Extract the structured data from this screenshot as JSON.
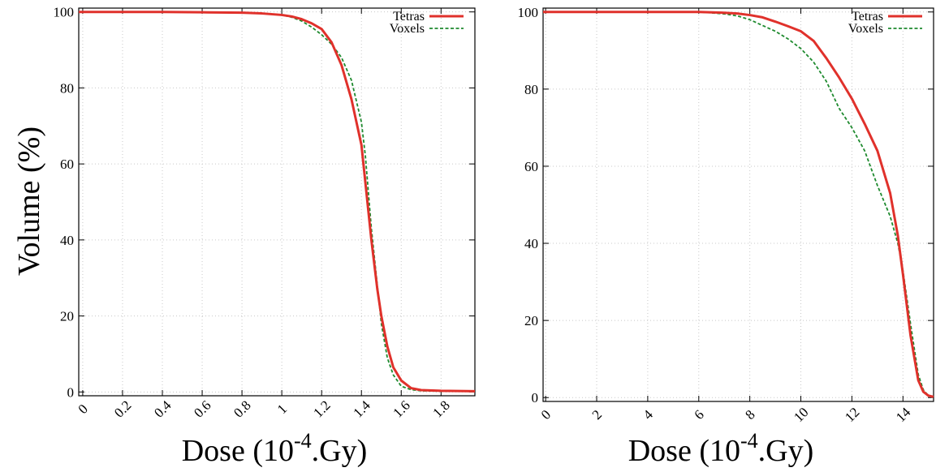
{
  "figure": {
    "ylabel": "Volume (%)",
    "xlabel_parts": [
      "Dose (10",
      "-4",
      ".Gy)"
    ]
  },
  "legend": {
    "tetras": "Tetras",
    "voxels": "Voxels"
  },
  "colors": {
    "tetras": "#e0312b",
    "voxels": "#1e8a2e",
    "grid": "#c8c8c8",
    "axis": "#000000"
  },
  "chart_data": [
    {
      "type": "line",
      "title": "",
      "xlabel": "Dose (10-4.Gy)",
      "ylabel": "Volume (%)",
      "xlim": [
        -0.02,
        1.97
      ],
      "ylim": [
        -1,
        101
      ],
      "grid": true,
      "legend_position": "top-right",
      "xticks": [
        0,
        0.2,
        0.4,
        0.6,
        0.8,
        1,
        1.2,
        1.4,
        1.6,
        1.8
      ],
      "xtick_labels": [
        "0",
        "0.2",
        "0.4",
        "0.6",
        "0.8",
        "1",
        "1.2",
        "1.4",
        "1.6",
        "1.8"
      ],
      "yticks": [
        0,
        20,
        40,
        60,
        80,
        100
      ],
      "ytick_labels": [
        "0",
        "20",
        "40",
        "60",
        "80",
        "100"
      ],
      "series": [
        {
          "name": "Tetras",
          "style": "solid",
          "x": [
            -0.02,
            0.2,
            0.4,
            0.6,
            0.8,
            0.9,
            1.0,
            1.05,
            1.1,
            1.15,
            1.2,
            1.25,
            1.3,
            1.35,
            1.4,
            1.42,
            1.45,
            1.48,
            1.5,
            1.53,
            1.56,
            1.6,
            1.65,
            1.7,
            1.8,
            1.97
          ],
          "y": [
            100,
            100,
            100,
            99.9,
            99.8,
            99.6,
            99.2,
            98.8,
            98.1,
            97.0,
            95.5,
            92.0,
            86.0,
            77.0,
            65.0,
            55.0,
            40.0,
            27.0,
            20.0,
            12.0,
            6.5,
            3.0,
            1.0,
            0.5,
            0.3,
            0.2
          ]
        },
        {
          "name": "Voxels",
          "style": "dashed",
          "x": [
            -0.02,
            0.2,
            0.4,
            0.6,
            0.8,
            0.9,
            1.0,
            1.05,
            1.1,
            1.15,
            1.2,
            1.25,
            1.3,
            1.35,
            1.4,
            1.42,
            1.45,
            1.48,
            1.5,
            1.53,
            1.56,
            1.6,
            1.65,
            1.7,
            1.8,
            1.97
          ],
          "y": [
            100,
            100,
            100,
            99.9,
            99.8,
            99.6,
            99.2,
            98.6,
            97.6,
            96.0,
            94.0,
            91.5,
            88.0,
            82.0,
            71.0,
            62.0,
            43.0,
            28.0,
            18.0,
            9.0,
            4.5,
            1.5,
            0.6,
            0.3,
            0.2,
            0.2
          ]
        }
      ]
    },
    {
      "type": "line",
      "title": "",
      "xlabel": "Dose (10-4.Gy)",
      "ylabel": "",
      "xlim": [
        -0.1,
        15.2
      ],
      "ylim": [
        -1,
        101
      ],
      "grid": true,
      "legend_position": "top-right",
      "xticks": [
        0,
        2,
        4,
        6,
        8,
        10,
        12,
        14
      ],
      "xtick_labels": [
        "0",
        "2",
        "4",
        "6",
        "8",
        "10",
        "12",
        "14"
      ],
      "yticks": [
        0,
        20,
        40,
        60,
        80,
        100
      ],
      "ytick_labels": [
        "0",
        "20",
        "40",
        "60",
        "80",
        "100"
      ],
      "series": [
        {
          "name": "Tetras",
          "style": "solid",
          "x": [
            -0.1,
            2,
            4,
            6,
            7,
            7.5,
            8,
            8.5,
            9,
            9.5,
            10,
            10.5,
            11,
            11.5,
            12,
            12.5,
            13,
            13.5,
            13.8,
            14.0,
            14.3,
            14.6,
            14.8,
            15.0,
            15.2
          ],
          "y": [
            100,
            100,
            100,
            100,
            99.8,
            99.6,
            99.2,
            98.6,
            97.5,
            96.3,
            95.0,
            92.5,
            88.0,
            83.0,
            77.5,
            71.0,
            64.0,
            53.0,
            42.0,
            32.0,
            16.0,
            4.5,
            1.5,
            0.5,
            0.2
          ]
        },
        {
          "name": "Voxels",
          "style": "dashed",
          "x": [
            -0.1,
            2,
            4,
            6,
            7,
            7.5,
            8,
            8.5,
            9,
            9.5,
            10,
            10.5,
            11,
            11.5,
            12,
            12.5,
            13,
            13.5,
            13.8,
            14.0,
            14.3,
            14.6,
            14.8,
            15.0,
            15.2
          ],
          "y": [
            100,
            100,
            100,
            100,
            99.5,
            99.0,
            98.0,
            96.5,
            95.0,
            93.0,
            90.5,
            87.0,
            82.0,
            75.0,
            70.0,
            64.0,
            55.0,
            47.0,
            40.0,
            33.0,
            19.0,
            6.0,
            2.0,
            0.5,
            0.2
          ]
        }
      ]
    }
  ]
}
